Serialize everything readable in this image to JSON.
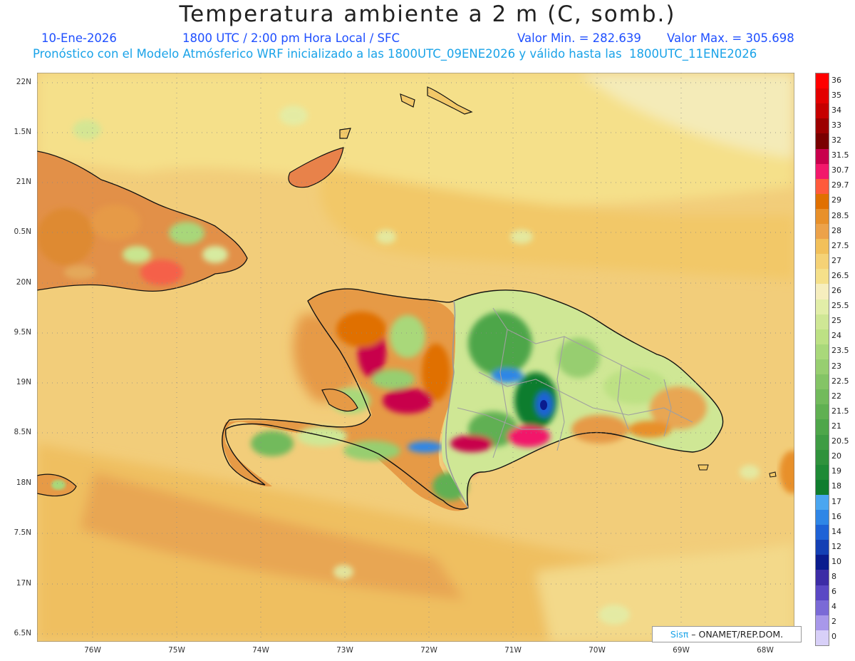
{
  "header": {
    "title": "Temperatura ambiente a 2 m (C, somb.)",
    "date": "10-Ene-2026",
    "time": "1800 UTC / 2:00 pm Hora Local / SFC",
    "vmin": "Valor Min. = 282.639",
    "vmax": "Valor Max. = 305.698",
    "subtitle": "Pronóstico con el Modelo Atmósferico WRF inicializado a las 1800UTC_09ENE2026 y válido hasta las  1800UTC_11ENE2026"
  },
  "axes": {
    "lat_labels": [
      "22N",
      "1.5N",
      "21N",
      "0.5N",
      "20N",
      "9.5N",
      "19N",
      "8.5N",
      "18N",
      "7.5N",
      "17N",
      "6.5N"
    ],
    "lon_labels": [
      "76W",
      "75W",
      "74W",
      "73W",
      "72W",
      "71W",
      "70W",
      "69W",
      "68W"
    ]
  },
  "colorbar": {
    "labels": [
      "36",
      "35",
      "34",
      "33",
      "32",
      "31.5",
      "30.7",
      "29.7",
      "29",
      "28.5",
      "28",
      "27.5",
      "27",
      "26.5",
      "26",
      "25.5",
      "25",
      "24",
      "23.5",
      "23",
      "22.5",
      "22",
      "21.5",
      "21",
      "20.5",
      "20",
      "19",
      "18",
      "17",
      "16",
      "14",
      "12",
      "10",
      "8",
      "6",
      "4",
      "2",
      "0"
    ],
    "colors": [
      "#ff0000",
      "#e30000",
      "#c60000",
      "#9c0000",
      "#7a0000",
      "#c8004c",
      "#f2196b",
      "#ff5a3c",
      "#e07000",
      "#e8902a",
      "#eca24a",
      "#f2c05a",
      "#f5d276",
      "#f5e08a",
      "#f6eebe",
      "#e2eea8",
      "#cfe795",
      "#bde184",
      "#a9d87a",
      "#97ce70",
      "#84c466",
      "#72ba5c",
      "#60b052",
      "#4ea64a",
      "#3e9c44",
      "#2f923c",
      "#1e8a36",
      "#0f7d2e",
      "#4aa6f0",
      "#2f86e6",
      "#1e62d6",
      "#1440b4",
      "#0a1c8e",
      "#3c2ca6",
      "#5a48c4",
      "#7a6ad6",
      "#a898ea",
      "#d8d0f8"
    ]
  },
  "credit": {
    "sis": "Sisπ",
    "rest": " – ONAMET/REP.DOM."
  }
}
